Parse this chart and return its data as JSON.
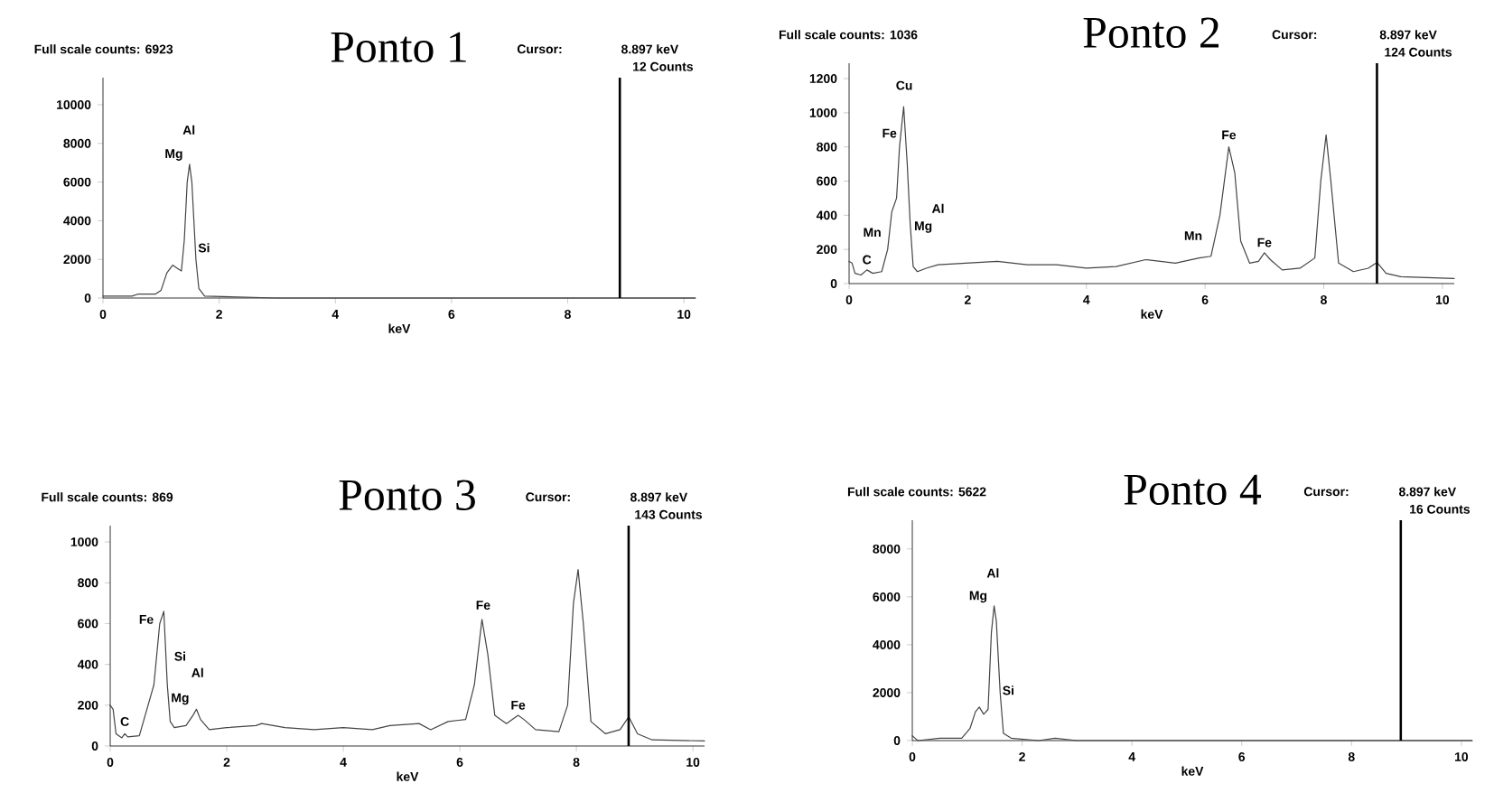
{
  "chart_data": [
    {
      "type": "line",
      "title": "Ponto 1",
      "xlabel": "keV",
      "xlim": [
        0,
        10.2
      ],
      "ylim": [
        0,
        11400
      ],
      "xticks": [
        0,
        2,
        4,
        6,
        8,
        10
      ],
      "yticks": [
        0,
        2000,
        4000,
        6000,
        8000,
        10000
      ],
      "series": [
        {
          "color": "#444444",
          "x": [
            0,
            0.5,
            0.6,
            0.9,
            1.0,
            1.1,
            1.2,
            1.3,
            1.35,
            1.4,
            1.45,
            1.49,
            1.53,
            1.6,
            1.65,
            1.75,
            3,
            6,
            8,
            10.2
          ],
          "values": [
            100,
            100,
            200,
            200,
            400,
            1300,
            1700,
            1500,
            1400,
            3000,
            6000,
            6923,
            6000,
            2000,
            500,
            100,
            0,
            0,
            0,
            0
          ]
        }
      ],
      "ref_lines": [
        {
          "axis": "x",
          "value": 8.897,
          "color": "#000000"
        }
      ],
      "annotations": [
        "Full scale counts: 6923",
        "Cursor:",
        "8.897 keV",
        "12 Counts",
        "Al",
        "Mg",
        "Si"
      ]
    },
    {
      "type": "line",
      "title": "Ponto 2",
      "xlabel": "keV",
      "xlim": [
        0,
        10.2
      ],
      "ylim": [
        0,
        1290
      ],
      "xticks": [
        0,
        2,
        4,
        6,
        8,
        10
      ],
      "yticks": [
        0,
        200,
        400,
        600,
        800,
        1000,
        1200
      ],
      "series": [
        {
          "color": "#444444",
          "x": [
            0,
            0.05,
            0.1,
            0.2,
            0.3,
            0.4,
            0.55,
            0.65,
            0.72,
            0.8,
            0.85,
            0.92,
            0.98,
            1.03,
            1.08,
            1.15,
            1.3,
            1.5,
            2,
            2.5,
            3,
            3.5,
            4,
            4.5,
            5,
            5.5,
            5.9,
            6.1,
            6.25,
            6.4,
            6.5,
            6.6,
            6.75,
            6.9,
            7.0,
            7.1,
            7.3,
            7.6,
            7.85,
            7.95,
            8.04,
            8.12,
            8.25,
            8.5,
            8.75,
            8.9,
            9.05,
            9.3,
            10.2
          ],
          "values": [
            130,
            120,
            60,
            50,
            80,
            60,
            70,
            200,
            420,
            500,
            800,
            1036,
            700,
            350,
            100,
            70,
            90,
            110,
            120,
            130,
            110,
            110,
            90,
            100,
            140,
            120,
            150,
            160,
            400,
            800,
            650,
            250,
            120,
            130,
            180,
            140,
            80,
            90,
            150,
            600,
            870,
            600,
            120,
            70,
            90,
            124,
            60,
            40,
            30
          ]
        }
      ],
      "ref_lines": [
        {
          "axis": "x",
          "value": 8.897,
          "color": "#000000"
        }
      ],
      "annotations": [
        "Full scale counts: 1036",
        "Cursor:",
        "8.897 keV",
        "124 Counts",
        "Mn",
        "C",
        "Fe",
        "Cu",
        "Al",
        "Mg",
        "Mn",
        "Fe",
        "Fe"
      ]
    },
    {
      "type": "line",
      "title": "Ponto 3",
      "xlabel": "keV",
      "xlim": [
        0,
        10.2
      ],
      "ylim": [
        0,
        1080
      ],
      "xticks": [
        0,
        2,
        4,
        6,
        8,
        10
      ],
      "yticks": [
        0,
        200,
        400,
        600,
        800,
        1000
      ],
      "series": [
        {
          "color": "#444444",
          "x": [
            0,
            0.05,
            0.1,
            0.2,
            0.25,
            0.3,
            0.5,
            0.65,
            0.75,
            0.85,
            0.92,
            0.98,
            1.03,
            1.1,
            1.3,
            1.42,
            1.48,
            1.55,
            1.7,
            2,
            2.5,
            2.6,
            3,
            3.5,
            4,
            4.5,
            4.8,
            5.3,
            5.5,
            5.8,
            6.1,
            6.25,
            6.38,
            6.48,
            6.6,
            6.8,
            7.0,
            7.1,
            7.3,
            7.7,
            7.85,
            7.95,
            8.03,
            8.12,
            8.25,
            8.5,
            8.75,
            8.9,
            9.05,
            9.3,
            10.2
          ],
          "values": [
            200,
            180,
            60,
            40,
            60,
            45,
            50,
            200,
            300,
            600,
            660,
            300,
            120,
            90,
            100,
            150,
            180,
            130,
            80,
            90,
            100,
            110,
            90,
            80,
            90,
            80,
            100,
            110,
            80,
            120,
            130,
            300,
            620,
            450,
            150,
            110,
            150,
            130,
            80,
            70,
            200,
            700,
            865,
            600,
            120,
            60,
            80,
            143,
            60,
            30,
            25
          ]
        }
      ],
      "ref_lines": [
        {
          "axis": "x",
          "value": 8.897,
          "color": "#000000"
        }
      ],
      "annotations": [
        "Full scale counts: 869",
        "Cursor:",
        "8.897 keV",
        "143 Counts",
        "C",
        "Fe",
        "Si",
        "Al",
        "Mg",
        "Fe",
        "Fe"
      ]
    },
    {
      "type": "line",
      "title": "Ponto 4",
      "xlabel": "keV",
      "xlim": [
        0,
        10.2
      ],
      "ylim": [
        0,
        9200
      ],
      "xticks": [
        0,
        2,
        4,
        6,
        8,
        10
      ],
      "yticks": [
        0,
        2000,
        4000,
        6000,
        8000
      ],
      "series": [
        {
          "color": "#444444",
          "x": [
            0,
            0.05,
            0.1,
            0.5,
            0.9,
            1.05,
            1.15,
            1.22,
            1.3,
            1.38,
            1.44,
            1.49,
            1.53,
            1.6,
            1.66,
            1.8,
            2.3,
            2.6,
            3,
            6,
            8,
            8.9,
            10.2
          ],
          "values": [
            200,
            100,
            0,
            100,
            100,
            500,
            1200,
            1400,
            1100,
            1300,
            4500,
            5622,
            5000,
            2000,
            300,
            100,
            0,
            100,
            0,
            0,
            0,
            0,
            0
          ]
        }
      ],
      "ref_lines": [
        {
          "axis": "x",
          "value": 8.897,
          "color": "#000000"
        }
      ],
      "annotations": [
        "Full scale counts: 5622",
        "Cursor:",
        "8.897 keV",
        "16 Counts",
        "Al",
        "Mg",
        "Si"
      ]
    }
  ]
}
